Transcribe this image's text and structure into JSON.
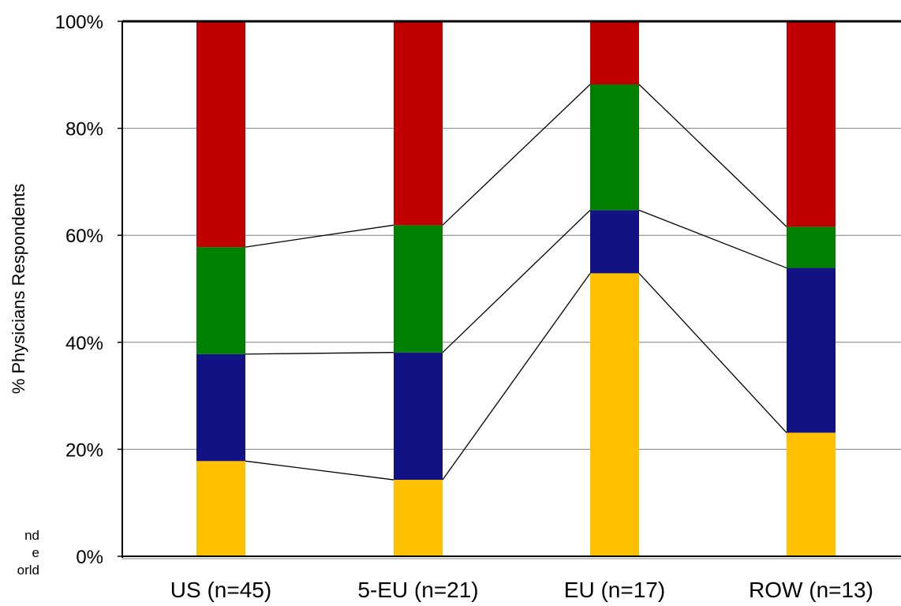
{
  "chart_data": {
    "type": "bar",
    "stacked": true,
    "percent": true,
    "ylabel": "% Physicians Respondents",
    "xlabel": "",
    "ylim": [
      0,
      100
    ],
    "yticks": [
      "0%",
      "20%",
      "40%",
      "60%",
      "80%",
      "100%"
    ],
    "grid": true,
    "categories": [
      "US (n=45)",
      "5-EU (n=21)",
      "EU (n=17)",
      "ROW (n=13)"
    ],
    "series": [
      {
        "color": "#FFC000",
        "values": [
          17.8,
          14.3,
          52.9,
          23.1
        ]
      },
      {
        "color": "#131285",
        "values": [
          20.0,
          23.8,
          11.8,
          30.8
        ]
      },
      {
        "color": "#008000",
        "values": [
          20.0,
          23.8,
          23.5,
          7.7
        ]
      },
      {
        "color": "#C00000",
        "values": [
          42.2,
          38.1,
          11.8,
          38.4
        ]
      }
    ],
    "connector_lines": true
  },
  "side_note": [
    "nd",
    "e",
    "orld"
  ]
}
